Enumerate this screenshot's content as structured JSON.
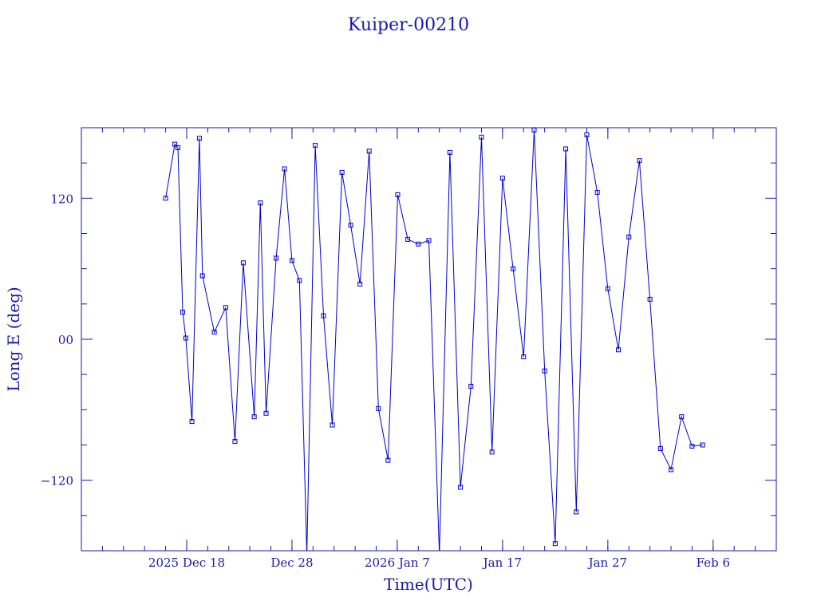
{
  "chart_data": {
    "type": "line",
    "title": "Kuiper-00210",
    "xlabel": "Time(UTC)",
    "ylabel": "Long E (deg)",
    "x_unit": "days",
    "xlim": [
      "2025-12-08",
      "2026-02-12"
    ],
    "ylim": [
      -180,
      180
    ],
    "x_ticks": [
      {
        "date": "2025-12-18",
        "label": "2025 Dec 18"
      },
      {
        "date": "2025-12-28",
        "label": "Dec 28"
      },
      {
        "date": "2026-01-07",
        "label": "2026 Jan  7"
      },
      {
        "date": "2026-01-17",
        "label": "Jan 17"
      },
      {
        "date": "2026-01-27",
        "label": "Jan 27"
      },
      {
        "date": "2026-02-06",
        "label": "Feb  6"
      }
    ],
    "y_ticks": [
      {
        "value": 120,
        "label": "120"
      },
      {
        "value": 0,
        "label": "00"
      },
      {
        "value": -120,
        "label": "−120"
      }
    ],
    "y_minor_ticks": [
      150,
      90,
      60,
      30,
      -30,
      -60,
      -90,
      -150
    ],
    "grid": false,
    "legend": "none",
    "colors": {
      "line": "#0000cc",
      "text": "#1a1aa6",
      "axes": "#1a1aa6"
    },
    "series": [
      {
        "x": [
          "2025-12-16",
          "2025-12-16 21:00",
          "2025-12-17 04:00",
          "2025-12-17 15:00",
          "2025-12-17 22:00",
          "2025-12-18 12:00",
          "2025-12-19 05:00",
          "2025-12-19 12:00",
          "2025-12-20 15:00",
          "2025-12-21 17:00",
          "2025-12-22 14:00",
          "2025-12-23 09:00",
          "2025-12-24 10:00",
          "2025-12-25 00:00",
          "2025-12-25 13:00",
          "2025-12-26 12:00",
          "2025-12-27 07:00",
          "2025-12-28 00:00",
          "2025-12-28 17:00",
          "2025-12-29 10:00",
          "2025-12-30 05:00",
          "2025-12-31 00:00",
          "2025-12-31 20:00",
          "2026-01-01 18:00",
          "2026-01-02 14:00",
          "2026-01-03 11:00",
          "2026-01-04 08:00",
          "2026-01-05 05:00",
          "2026-01-06 03:00",
          "2026-01-07 01:00",
          "2026-01-08 00:00",
          "2026-01-09 00:00",
          "2026-01-10 00:00",
          "2026-01-11 00:00",
          "2026-01-12 00:00",
          "2026-01-13 00:00",
          "2026-01-14 00:00",
          "2026-01-15 00:00",
          "2026-01-16 00:00",
          "2026-01-17 00:00",
          "2026-01-18 00:00",
          "2026-01-19 00:00",
          "2026-01-20 00:00",
          "2026-01-21 00:00",
          "2026-01-22 00:00",
          "2026-01-23 00:00",
          "2026-01-24 00:00",
          "2026-01-25 00:00",
          "2026-01-26 00:00",
          "2026-01-27 00:00",
          "2026-01-28 00:00",
          "2026-01-29 00:00",
          "2026-01-30 00:00",
          "2026-01-31 00:00",
          "2026-02-01 00:00",
          "2026-02-02 00:00",
          "2026-02-03 00:00",
          "2026-02-04 00:00",
          "2026-02-05 00:00"
        ],
        "y": [
          120,
          166,
          163,
          23,
          1,
          -70,
          171,
          54,
          6,
          27,
          -87,
          65,
          -66,
          116,
          -63,
          69,
          145,
          67,
          50,
          -183,
          165,
          20,
          -73,
          142,
          97,
          47,
          160,
          -59,
          -103,
          123,
          85,
          81,
          84,
          -183,
          159,
          -126,
          -40,
          172,
          -96,
          137,
          60,
          -15,
          178,
          -27,
          -174,
          162,
          -147,
          174,
          125,
          43,
          -9,
          87,
          152,
          34,
          -93,
          -111,
          -66,
          -91,
          -90
        ]
      }
    ]
  }
}
